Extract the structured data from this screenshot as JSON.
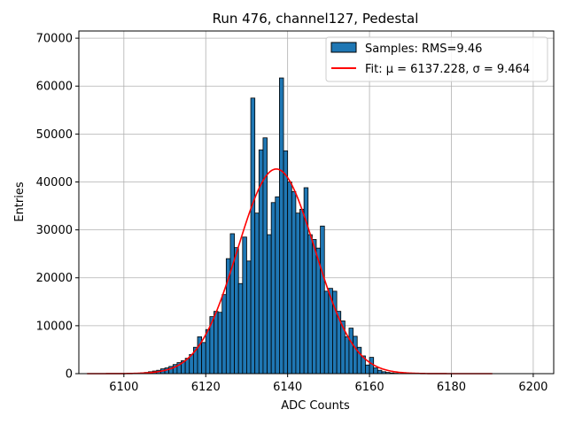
{
  "chart_data": {
    "type": "bar",
    "title": "Run 476, channel127, Pedestal",
    "xlabel": "ADC Counts",
    "ylabel": "Entries",
    "xlim": [
      6089,
      6205
    ],
    "ylim": [
      0,
      71500
    ],
    "xticks": [
      6100,
      6120,
      6140,
      6160,
      6180,
      6200
    ],
    "xtick_labels": [
      "6100",
      "6120",
      "6140",
      "6160",
      "6180",
      "6200"
    ],
    "yticks": [
      0,
      10000,
      20000,
      30000,
      40000,
      50000,
      60000,
      70000
    ],
    "ytick_labels": [
      "0",
      "10000",
      "20000",
      "30000",
      "40000",
      "50000",
      "60000",
      "70000"
    ],
    "grid": true,
    "legend_position": "top-right",
    "bar_color": "#1f77b4",
    "fit_color": "#ff0000",
    "bin_width": 1,
    "histogram": {
      "name": "Samples: RMS=9.46",
      "bin_starts": [
        6101,
        6102,
        6103,
        6104,
        6105,
        6106,
        6107,
        6108,
        6109,
        6110,
        6111,
        6112,
        6113,
        6114,
        6115,
        6116,
        6117,
        6118,
        6119,
        6120,
        6121,
        6122,
        6123,
        6124,
        6125,
        6126,
        6127,
        6128,
        6129,
        6130,
        6131,
        6132,
        6133,
        6134,
        6135,
        6136,
        6137,
        6138,
        6139,
        6140,
        6141,
        6142,
        6143,
        6144,
        6145,
        6146,
        6147,
        6148,
        6149,
        6150,
        6151,
        6152,
        6153,
        6154,
        6155,
        6156,
        6157,
        6158,
        6159,
        6160,
        6161,
        6162,
        6163,
        6164,
        6165,
        6166,
        6167,
        6168
      ],
      "values": [
        30,
        60,
        100,
        150,
        250,
        400,
        550,
        700,
        1000,
        1200,
        1500,
        1900,
        2300,
        2700,
        3200,
        4000,
        5500,
        7700,
        6500,
        9200,
        11900,
        13000,
        12800,
        16500,
        24000,
        29200,
        26300,
        18800,
        28500,
        23500,
        57500,
        33500,
        46700,
        49200,
        29000,
        35700,
        36900,
        61700,
        46500,
        40000,
        38000,
        33500,
        34300,
        38800,
        29000,
        28000,
        26200,
        30800,
        17200,
        17800,
        17200,
        13000,
        11000,
        7700,
        9500,
        7800,
        5500,
        3700,
        1800,
        3400,
        1200,
        700,
        400,
        250,
        150,
        80,
        40,
        20
      ]
    },
    "fit": {
      "name": "Fit: μ = 6137.228, σ = 9.464",
      "mu": 6137.228,
      "sigma": 9.464,
      "amplitude": 42700,
      "x_range": [
        6091,
        6190
      ]
    }
  }
}
